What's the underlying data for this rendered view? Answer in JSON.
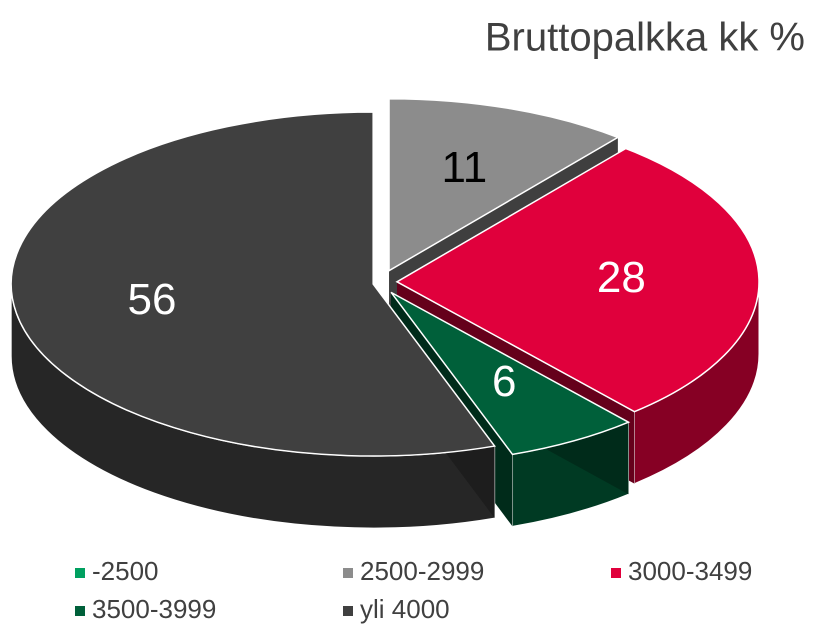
{
  "chart_data": {
    "type": "pie",
    "title": "Bruttopalkka kk %",
    "categories": [
      "-2500",
      "2500-2999",
      "3000-3499",
      "3500-3999",
      "yli 4000"
    ],
    "values": [
      0,
      11,
      28,
      6,
      56
    ],
    "colors": [
      "#00a060",
      "#8c8c8c",
      "#e0003c",
      "#00603a",
      "#404040"
    ]
  }
}
